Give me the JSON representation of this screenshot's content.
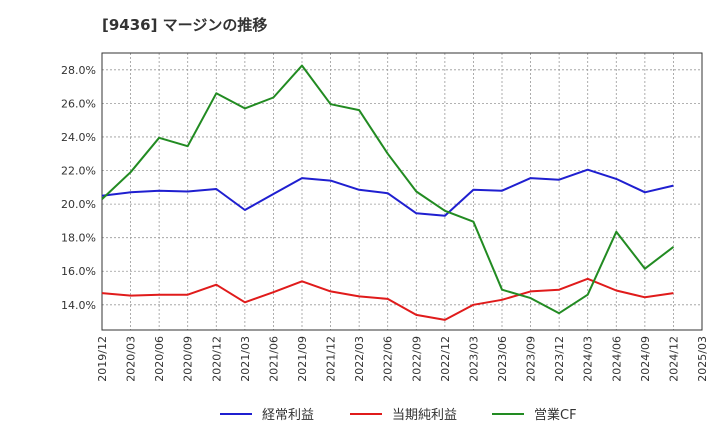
{
  "title": "[9436]  マージンの推移",
  "chart_data": {
    "type": "line",
    "x": [
      "2019/12",
      "2020/03",
      "2020/06",
      "2020/09",
      "2020/12",
      "2021/03",
      "2021/06",
      "2021/09",
      "2021/12",
      "2022/03",
      "2022/06",
      "2022/09",
      "2022/12",
      "2023/03",
      "2023/06",
      "2023/09",
      "2023/12",
      "2024/03",
      "2024/06",
      "2024/09",
      "2024/12"
    ],
    "x_ticks": [
      "2019/12",
      "2020/03",
      "2020/06",
      "2020/09",
      "2020/12",
      "2021/03",
      "2021/06",
      "2021/09",
      "2021/12",
      "2022/03",
      "2022/06",
      "2022/09",
      "2022/12",
      "2023/03",
      "2023/06",
      "2023/09",
      "2023/12",
      "2024/03",
      "2024/06",
      "2024/09",
      "2024/12",
      "2025/03"
    ],
    "y_ticks": [
      "14.0%",
      "16.0%",
      "18.0%",
      "20.0%",
      "22.0%",
      "24.0%",
      "26.0%",
      "28.0%"
    ],
    "ylim": [
      12.5,
      29.0
    ],
    "grid": true,
    "legend_position": "bottom",
    "series": [
      {
        "name": "経常利益",
        "color": "#1f1fd0",
        "values": [
          20.5,
          20.7,
          20.8,
          20.75,
          20.9,
          19.65,
          20.6,
          21.55,
          21.4,
          20.85,
          20.65,
          19.45,
          19.3,
          20.85,
          20.8,
          21.55,
          21.45,
          22.05,
          21.5,
          20.7,
          21.1
        ]
      },
      {
        "name": "当期純利益",
        "color": "#e01b1b",
        "values": [
          14.7,
          14.55,
          14.6,
          14.6,
          15.2,
          14.15,
          14.75,
          15.4,
          14.8,
          14.5,
          14.35,
          13.4,
          13.1,
          14.0,
          14.3,
          14.8,
          14.9,
          15.55,
          14.85,
          14.45,
          14.7
        ]
      },
      {
        "name": "営業CF",
        "color": "#228b22",
        "values": [
          20.3,
          21.9,
          23.95,
          23.45,
          26.6,
          25.7,
          26.35,
          28.25,
          25.95,
          25.6,
          23.0,
          20.75,
          19.6,
          18.95,
          14.9,
          14.4,
          13.5,
          14.6,
          18.35,
          16.15,
          17.45
        ]
      }
    ]
  }
}
